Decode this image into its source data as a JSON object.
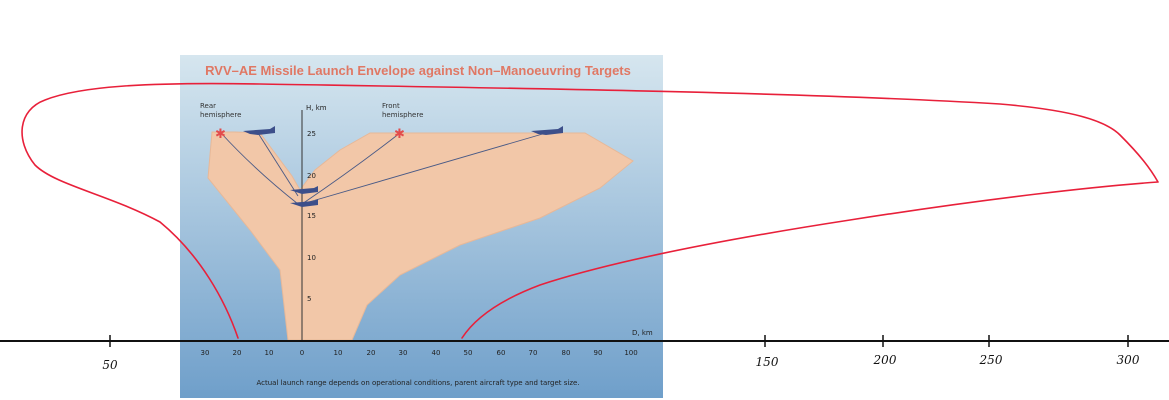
{
  "figure": {
    "title": "RVV–AE Missile Launch Envelope against Non–Manoeuvring Targets",
    "y_axis_label": "H, km",
    "x_axis_label": "D, km",
    "rear_label": [
      "Rear",
      "hemisphere"
    ],
    "front_label": [
      "Front",
      "hemisphere"
    ],
    "footnote": "Actual launch range depends on operational conditions, parent aircraft type and target size.",
    "y_ticks": [
      "25",
      "20",
      "15",
      "10",
      "5"
    ],
    "x_ticks": [
      "30",
      "20",
      "10",
      "0",
      "10",
      "20",
      "30",
      "40",
      "50",
      "60",
      "70",
      "80",
      "90",
      "100"
    ]
  },
  "handwritten_ticks": [
    "50",
    "150",
    "200",
    "250",
    "300"
  ],
  "colors": {
    "sky_top": "#d6e6ef",
    "sky_bottom": "#6f9fca",
    "envelope": "#f2c7a8",
    "title": "#e07864",
    "aircraft": "#3d4f8a",
    "missile_star": "#e24c4c",
    "trajectory": "#4a5a86",
    "annotation": "#e8203a",
    "axis": "#111111"
  }
}
